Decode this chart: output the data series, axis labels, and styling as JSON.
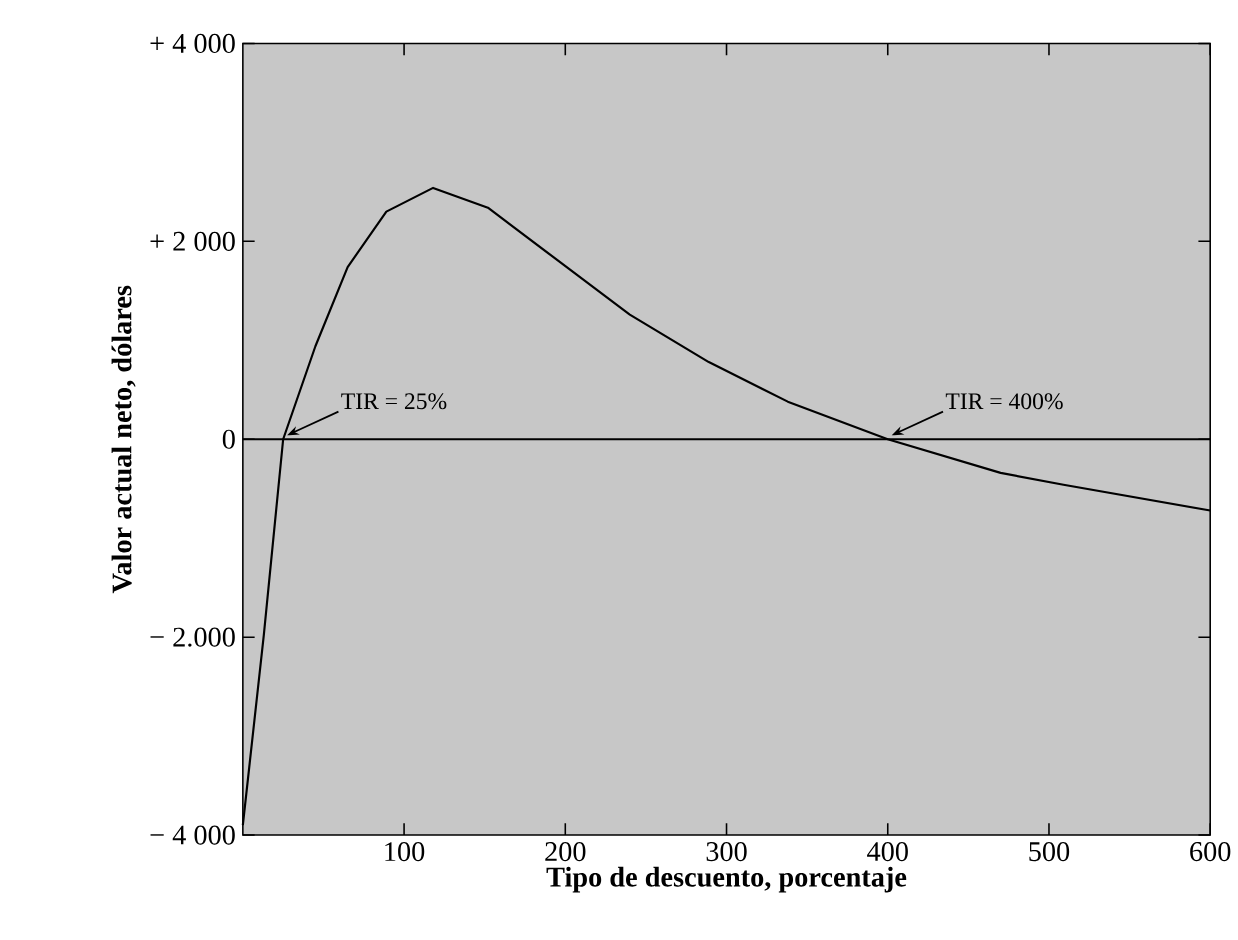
{
  "chart_data": {
    "type": "line",
    "xlabel": "Tipo de descuento, porcentaje",
    "ylabel": "Valor actual neto, dólares",
    "xlim": [
      0,
      600
    ],
    "ylim": [
      -4000,
      4000
    ],
    "xticks": [
      100,
      200,
      300,
      400,
      500,
      600
    ],
    "yticks": [
      {
        "value": -4000,
        "label": "− 4 000"
      },
      {
        "value": -2000,
        "label": "− 2.000"
      },
      {
        "value": 0,
        "label": "0"
      },
      {
        "value": 2000,
        "label": "+ 2 000"
      },
      {
        "value": 4000,
        "label": "+ 4 000"
      }
    ],
    "series": [
      {
        "color": "#000000",
        "x": [
          0,
          13,
          25,
          45,
          65,
          89,
          118,
          152,
          191,
          240,
          289,
          338,
          400,
          470,
          509,
          600
        ],
        "values": [
          -3900,
          -1980,
          0,
          940,
          1740,
          2300,
          2540,
          2340,
          1860,
          1260,
          780,
          380,
          0,
          -340,
          -460,
          -720
        ]
      }
    ],
    "ref_lines": [
      {
        "axis": "y",
        "value": 0,
        "color": "#000000"
      }
    ],
    "annotations": [
      {
        "text": "TIR = 25%",
        "x": 25,
        "y": 0
      },
      {
        "text": "TIR = 400%",
        "x": 400,
        "y": 0
      }
    ],
    "marker": "none",
    "line_style": "solid"
  }
}
